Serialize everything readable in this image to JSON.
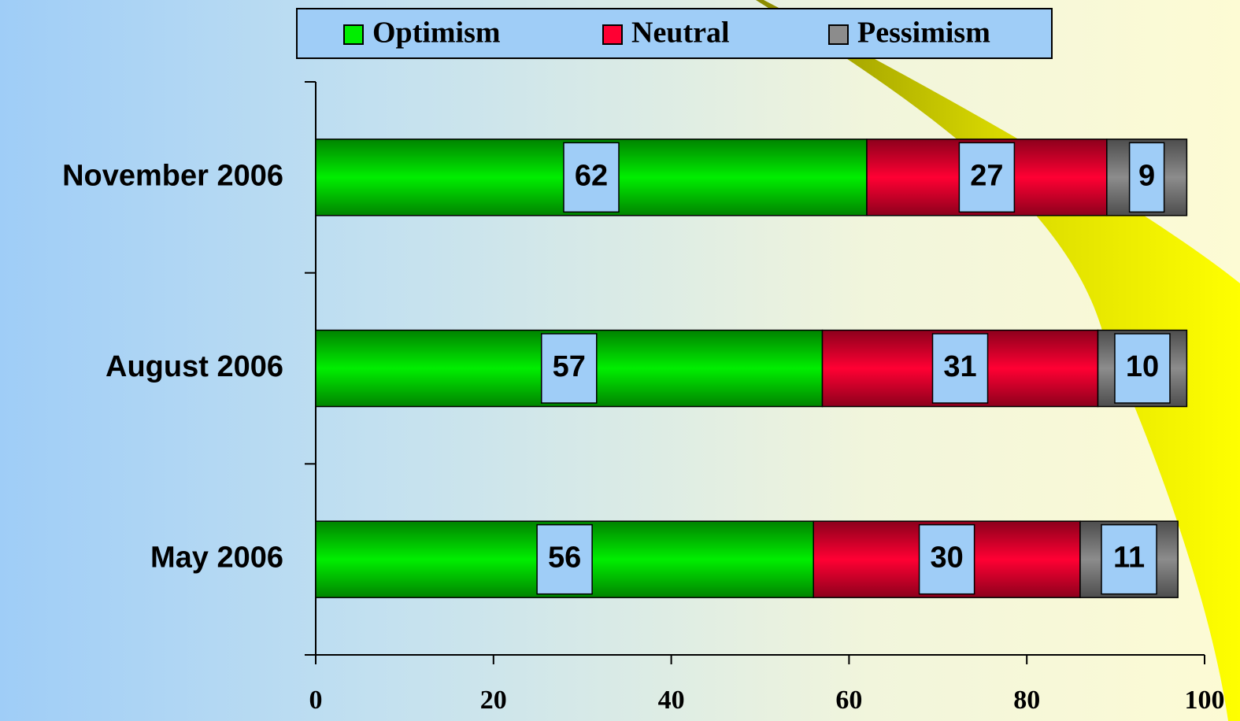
{
  "chart_data": {
    "type": "stacked-barh",
    "categories": [
      "November 2006",
      "August 2006",
      "May 2006"
    ],
    "series": [
      {
        "name": "Optimism",
        "color": "#00ee00",
        "values": [
          62,
          57,
          56
        ]
      },
      {
        "name": "Neutral",
        "color": "#ff0033",
        "values": [
          27,
          31,
          30
        ]
      },
      {
        "name": "Pessimism",
        "color": "#8c8c8c",
        "values": [
          9,
          10,
          11
        ]
      }
    ],
    "xlim": [
      0,
      100
    ],
    "xticks": [
      0,
      20,
      40,
      60,
      80,
      100
    ]
  }
}
